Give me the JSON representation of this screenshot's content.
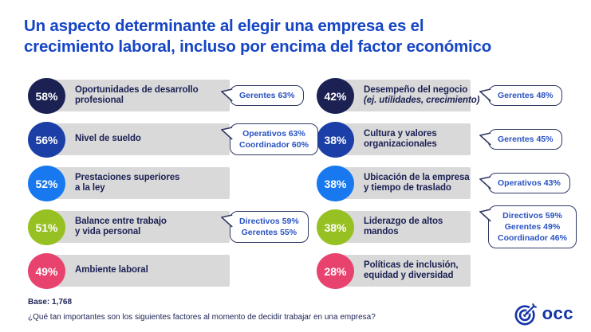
{
  "title": {
    "lines": [
      "Un aspecto determinante al elegir una empresa es el",
      "crecimiento laboral, incluso por encima del factor económico"
    ]
  },
  "colors": {
    "title_blue": "#1646c5",
    "navy": "#1b2153",
    "bar_gray": "#d9d9d9",
    "callout_border": "#2f3a64",
    "callout_text": "#2a53c2",
    "logo_blue": "#1434a8",
    "circle_dark_navy": "#1b2153",
    "circle_royal_blue": "#1c3fa7",
    "circle_azure": "#1778f0",
    "circle_lime": "#97c122",
    "circle_pink": "#e8436f"
  },
  "chart_data": {
    "type": "bar",
    "title": "Un aspecto determinante al elegir una empresa es el crecimiento laboral, incluso por encima del factor económico",
    "unit": "%",
    "value_range": [
      0,
      100
    ],
    "question": "¿Qué tan importantes son los siguientes factores al momento de decidir trabajar en una empresa?",
    "base": 1768,
    "columns": [
      {
        "items": [
          {
            "label": "Oportunidades de desarrollo profesional",
            "label_lines": [
              "Oportunidades de desarrollo",
              "profesional"
            ],
            "italic_lines": [],
            "value": 58,
            "percent_label": "58%",
            "color": "#1b2153",
            "breakdown": [
              "Gerentes 63%"
            ]
          },
          {
            "label": "Nivel de sueldo",
            "label_lines": [
              "Nivel de sueldo"
            ],
            "italic_lines": [],
            "value": 56,
            "percent_label": "56%",
            "color": "#1c3fa7",
            "breakdown": [
              "Operativos 63%",
              "Coordinador 60%"
            ]
          },
          {
            "label": "Prestaciones superiores a la ley",
            "label_lines": [
              "Prestaciones superiores",
              "a la ley"
            ],
            "italic_lines": [],
            "value": 52,
            "percent_label": "52%",
            "color": "#1778f0",
            "breakdown": []
          },
          {
            "label": "Balance entre trabajo y vida personal",
            "label_lines": [
              "Balance entre trabajo",
              "y vida personal"
            ],
            "italic_lines": [],
            "value": 51,
            "percent_label": "51%",
            "color": "#97c122",
            "breakdown": [
              "Directivos 59%",
              "Gerentes 55%"
            ]
          },
          {
            "label": "Ambiente laboral",
            "label_lines": [
              "Ambiente laboral"
            ],
            "italic_lines": [],
            "value": 49,
            "percent_label": "49%",
            "color": "#e8436f",
            "breakdown": []
          }
        ]
      },
      {
        "items": [
          {
            "label": "Desempeño del negocio (ej. utilidades, crecimiento)",
            "label_lines": [
              "Desempeño del negocio",
              "(ej. utilidades, crecimiento)"
            ],
            "italic_lines": [
              1
            ],
            "value": 42,
            "percent_label": "42%",
            "color": "#1b2153",
            "breakdown": [
              "Gerentes 48%"
            ]
          },
          {
            "label": "Cultura y valores organizacionales",
            "label_lines": [
              "Cultura y valores",
              "organizacionales"
            ],
            "italic_lines": [],
            "value": 38,
            "percent_label": "38%",
            "color": "#1c3fa7",
            "breakdown": [
              "Gerentes 45%"
            ]
          },
          {
            "label": "Ubicación de la empresa y tiempo de traslado",
            "label_lines": [
              "Ubicación de la empresa",
              "y tiempo de traslado"
            ],
            "italic_lines": [],
            "value": 38,
            "percent_label": "38%",
            "color": "#1778f0",
            "breakdown": [
              "Operativos 43%"
            ]
          },
          {
            "label": "Liderazgo de altos mandos",
            "label_lines": [
              "Liderazgo de altos",
              "mandos"
            ],
            "italic_lines": [],
            "value": 38,
            "percent_label": "38%",
            "color": "#97c122",
            "breakdown": [
              "Directivos 59%",
              "Gerentes 49%",
              "Coordinador 46%"
            ]
          },
          {
            "label": "Políticas de inclusión, equidad y diversidad",
            "label_lines": [
              "Políticas de inclusión,",
              "equidad y diversidad"
            ],
            "italic_lines": [],
            "value": 28,
            "percent_label": "28%",
            "color": "#e8436f",
            "breakdown": []
          }
        ]
      }
    ]
  },
  "footer": {
    "base": "Base: 1,768",
    "question": "¿Qué tan importantes son los siguientes factores al momento de decidir trabajar en una empresa?"
  },
  "logo": {
    "text": "occ"
  }
}
